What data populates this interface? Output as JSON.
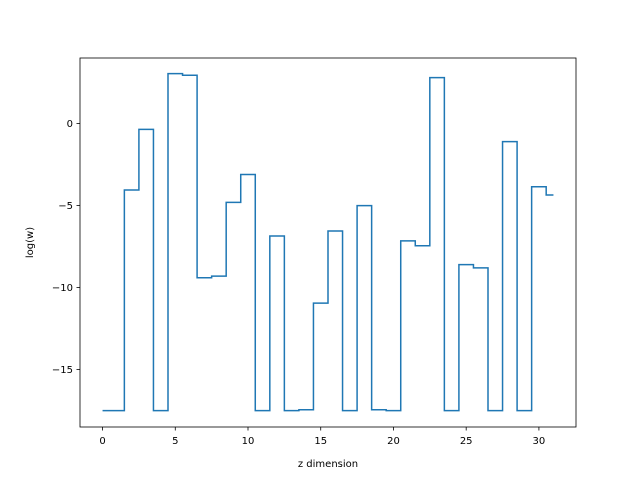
{
  "chart_data": {
    "type": "line",
    "drawstyle": "steps-mid",
    "title": "",
    "xlabel": "z dimension",
    "ylabel": "log(w)",
    "xlim": [
      -1.55,
      32.55
    ],
    "ylim": [
      -18.5,
      4.0
    ],
    "xticks": [
      0,
      5,
      10,
      15,
      20,
      25,
      30
    ],
    "yticks": [
      -15,
      -10,
      -5,
      0
    ],
    "ytick_labels": [
      "−15",
      "−10",
      "−5",
      "0"
    ],
    "grid": false,
    "legend": "none",
    "series": [
      {
        "color": "#1f77b4",
        "x": [
          0,
          1,
          2,
          3,
          4,
          5,
          6,
          7,
          8,
          9,
          10,
          11,
          12,
          13,
          14,
          15,
          16,
          17,
          18,
          19,
          20,
          21,
          22,
          23,
          24,
          25,
          26,
          27,
          28,
          29,
          30,
          31
        ],
        "y": [
          -17.5,
          -17.5,
          -4.05,
          -0.35,
          -17.5,
          3.05,
          2.95,
          -9.4,
          -9.3,
          -4.8,
          -3.1,
          -17.5,
          -6.85,
          -17.5,
          -17.45,
          -10.95,
          -6.55,
          -17.5,
          -5.0,
          -17.45,
          -17.5,
          -7.15,
          -7.45,
          2.8,
          -17.5,
          -8.6,
          -8.8,
          -17.5,
          -1.1,
          -17.5,
          -3.85,
          -4.35
        ]
      }
    ]
  }
}
